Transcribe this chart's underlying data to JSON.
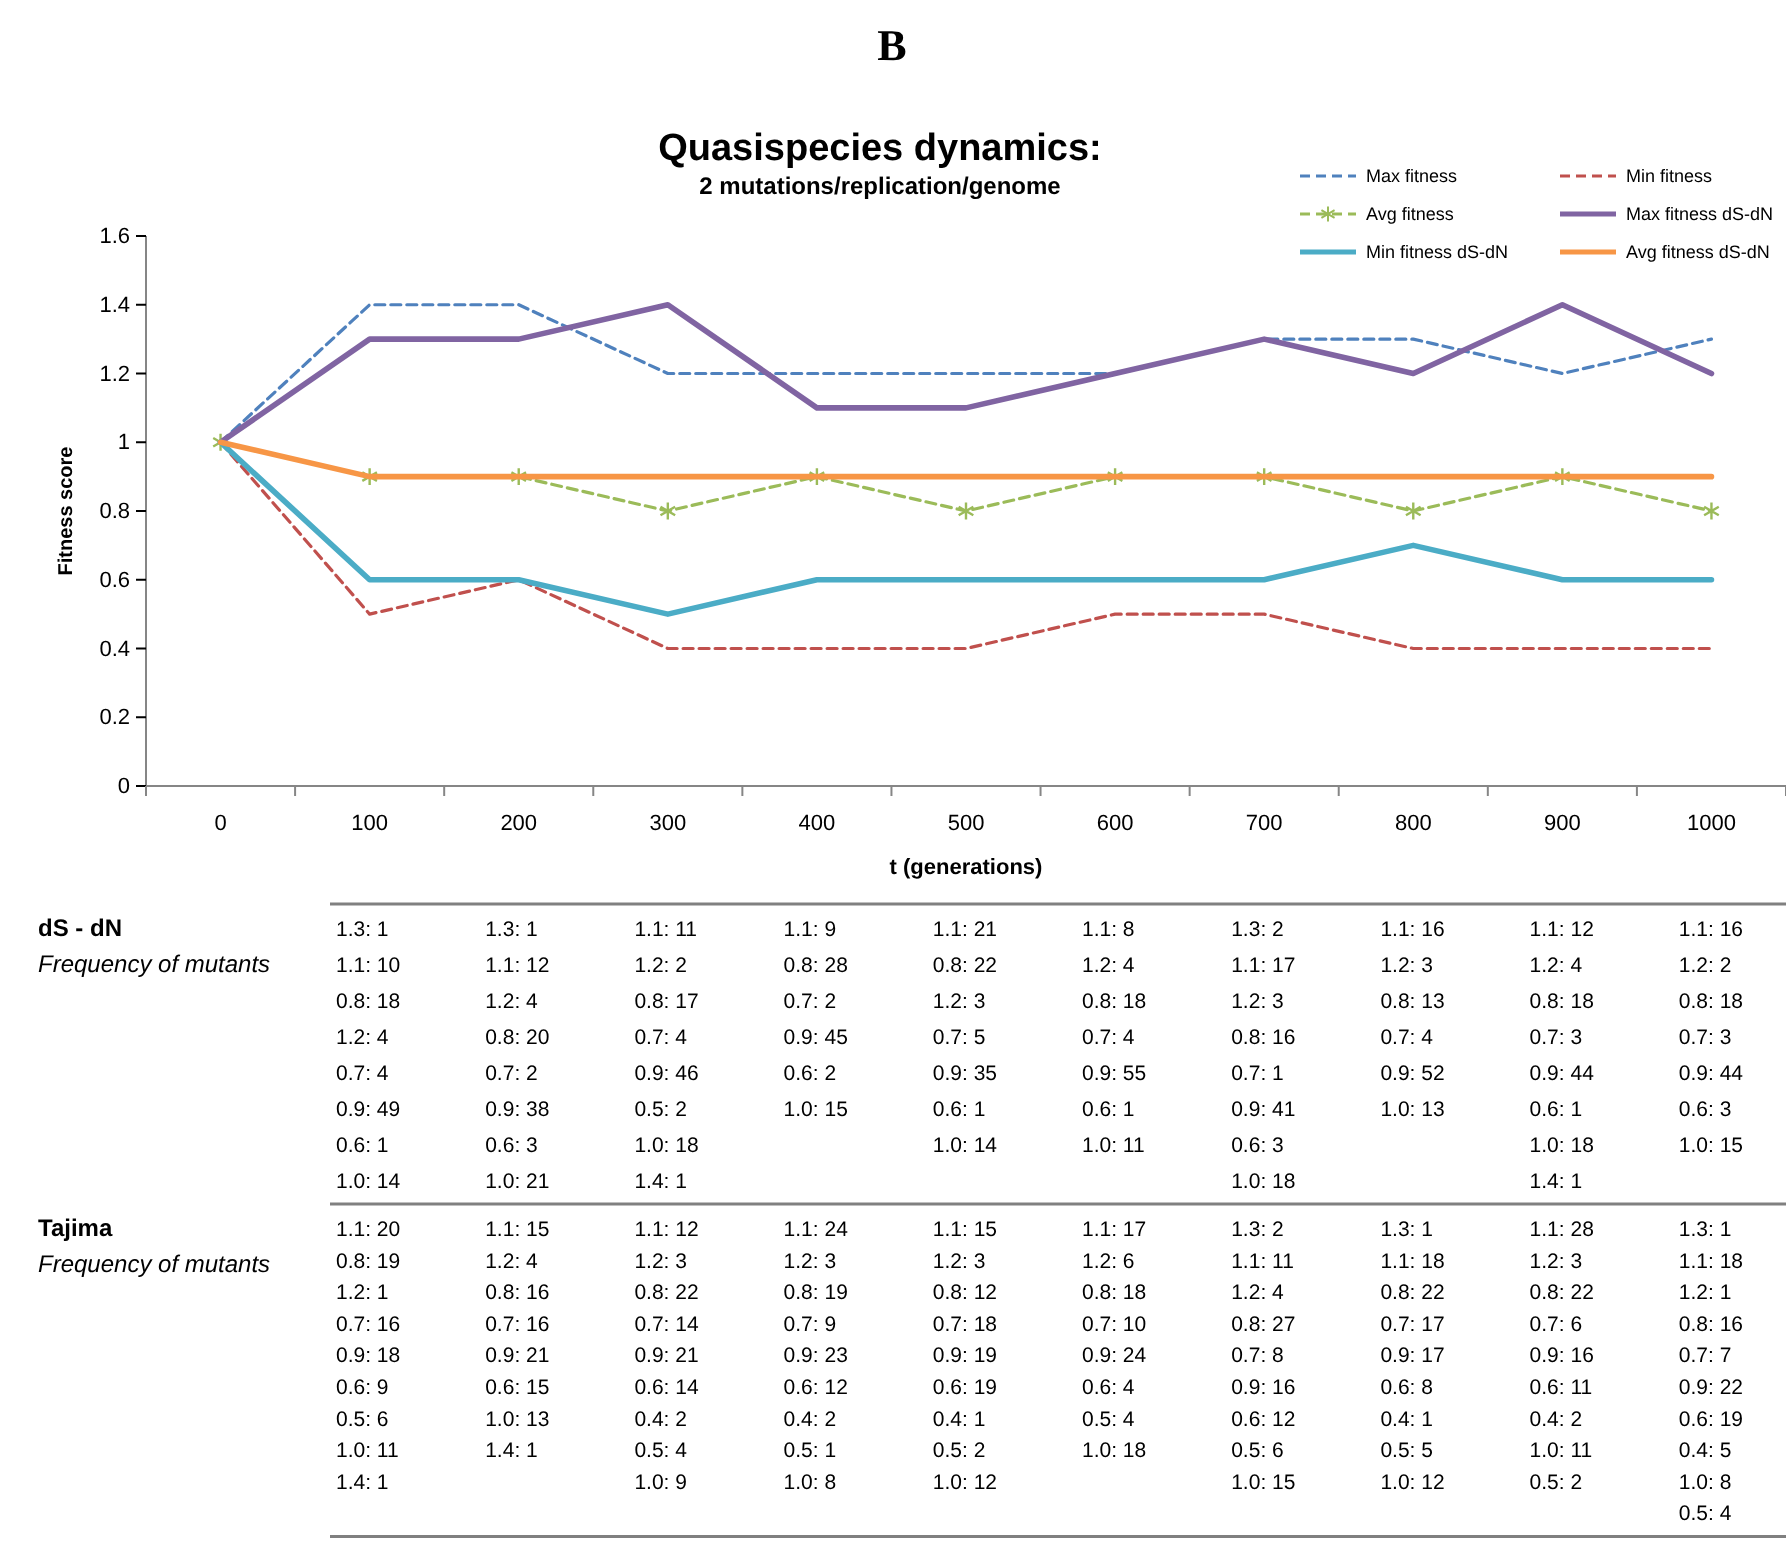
{
  "chart_data": {
    "type": "line",
    "title": "Quasispecies dynamics:",
    "subtitle": "2 mutations/replication/genome",
    "xlabel": "t (generations)",
    "ylabel": "Fitness score",
    "categories": [
      "0",
      "100",
      "200",
      "300",
      "400",
      "500",
      "600",
      "700",
      "800",
      "900",
      "1000"
    ],
    "ylim": [
      0,
      1.6
    ],
    "yticks": [
      0,
      0.2,
      0.4,
      0.6,
      0.8,
      1,
      1.2,
      1.4,
      1.6
    ],
    "grid": false,
    "legend": "top right",
    "series": [
      {
        "name": "Max fitness",
        "color": "#4f81bd",
        "line_style": "dashed",
        "marker": "none",
        "values": [
          1,
          1.4,
          1.4,
          1.2,
          1.2,
          1.2,
          1.2,
          1.3,
          1.3,
          1.2,
          1.3
        ]
      },
      {
        "name": "Min fitness",
        "color": "#c0504d",
        "line_style": "dashed",
        "marker": "none",
        "values": [
          1,
          0.5,
          0.6,
          0.4,
          0.4,
          0.4,
          0.5,
          0.5,
          0.4,
          0.4,
          0.4
        ]
      },
      {
        "name": "Avg fitness",
        "color": "#9bbb59",
        "line_style": "dashed",
        "marker": "cross",
        "values": [
          1,
          0.9,
          0.9,
          0.8,
          0.9,
          0.8,
          0.9,
          0.9,
          0.8,
          0.9,
          0.8
        ]
      },
      {
        "name": "Max fitness dS-dN",
        "color": "#8064a2",
        "line_style": "solid",
        "marker": "none",
        "values": [
          1,
          1.3,
          1.3,
          1.4,
          1.1,
          1.1,
          1.2,
          1.3,
          1.2,
          1.4,
          1.2
        ]
      },
      {
        "name": "Min fitness dS-dN",
        "color": "#4bacc6",
        "line_style": "solid",
        "marker": "none",
        "values": [
          1,
          0.6,
          0.6,
          0.5,
          0.6,
          0.6,
          0.6,
          0.6,
          0.7,
          0.6,
          0.6
        ]
      },
      {
        "name": "Avg fitness dS-dN",
        "color": "#f79646",
        "line_style": "solid",
        "marker": "none",
        "values": [
          1,
          0.9,
          0.9,
          0.9,
          0.9,
          0.9,
          0.9,
          0.9,
          0.9,
          0.9,
          0.9
        ]
      }
    ],
    "annotations": [
      "B",
      "dS - dN",
      "Frequency of mutants",
      "1.3: 1\n1.1: 10\n0.8: 18\n1.2: 4\n0.7: 4\n0.9: 49\n0.6: 1\n1.0: 14",
      "1.3: 1\n1.1: 12\n1.2: 4\n0.8: 20\n0.7: 2\n0.9: 38\n0.6: 3\n1.0: 21",
      "1.1: 11\n1.2: 2\n0.8: 17\n0.7: 4\n0.9: 46\n0.5: 2\n1.0: 18\n1.4: 1",
      "1.1: 9\n0.8: 28\n0.7: 2\n0.9: 45\n0.6: 2\n1.0: 15",
      "1.1: 21\n0.8: 22\n1.2: 3\n0.7: 5\n0.9: 35\n0.6: 1\n1.0: 14",
      "1.1: 8\n1.2: 4\n0.8: 18\n0.7: 4\n0.9: 55\n0.6: 1\n1.0: 11",
      "1.3: 2\n1.1: 17\n1.2: 3\n0.8: 16\n0.7: 1\n0.9: 41\n0.6: 3\n1.0: 18",
      "1.1: 16\n1.2: 3\n0.8: 13\n0.7: 4\n0.9: 52\n1.0: 13",
      "1.1: 12\n1.2: 4\n0.8: 18\n0.7: 3\n0.9: 44\n0.6: 1\n1.0: 18\n1.4: 1",
      "1.1: 16\n1.2: 2\n0.8: 18\n0.7: 3\n0.9: 44\n0.6: 3\n1.0: 15",
      "Tajima",
      "Frequency of mutants",
      "1.1: 20\n0.8: 19\n1.2: 1\n0.7: 16\n0.9: 18\n0.6: 9\n0.5: 6\n1.0: 11\n1.4: 1",
      "1.1: 15\n1.2: 4\n0.8: 16\n0.7: 16\n0.9: 21\n0.6: 15\n1.0: 13\n1.4: 1",
      "1.1: 12\n1.2: 3\n0.8: 22\n0.7: 14\n0.9: 21\n0.6: 14\n0.4: 2\n0.5: 4\n1.0: 9",
      "1.1: 24\n1.2: 3\n0.8: 19\n0.7: 9\n0.9: 23\n0.6: 12\n0.4: 2\n0.5: 1\n1.0: 8",
      "1.1: 15\n1.2: 3\n0.8: 12\n0.7: 18\n0.9: 19\n0.6: 19\n0.4: 1\n0.5: 2\n1.0: 12",
      "1.1: 17\n1.2: 6\n0.8: 18\n0.7: 10\n0.9: 24\n0.6: 4\n0.5: 4\n1.0: 18",
      "1.3: 2\n1.1: 11\n1.2: 4\n0.8: 27\n0.7: 8\n0.9: 16\n0.6: 12\n0.5: 6\n1.0: 15",
      "1.3: 1\n1.1: 18\n0.8: 22\n0.7: 17\n0.9: 17\n0.6: 8\n0.4: 1\n0.5: 5\n1.0: 12",
      "1.1: 28\n1.2: 3\n0.8: 22\n0.7: 6\n0.9: 16\n0.6: 11\n0.4: 2\n1.0: 11\n0.5: 2",
      "1.3: 1\n1.1: 18\n1.2: 1\n0.8: 16\n0.7: 7\n0.9: 22\n0.6: 19\n0.4: 5\n1.0: 8\n0.5: 4"
    ]
  }
}
